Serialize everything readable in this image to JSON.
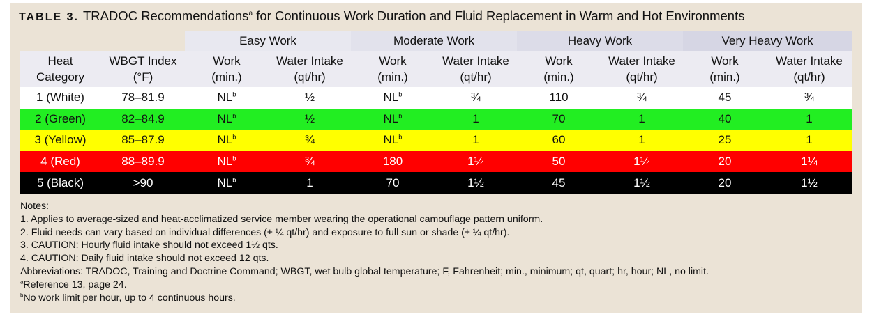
{
  "header": {
    "label": "TABLE 3.",
    "title": "TRADOC Recommendations",
    "title_sup": "a",
    "title_rest": " for Continuous Work Duration and Fluid Replacement in Warm and Hot Environments"
  },
  "table": {
    "groups": [
      "Easy Work",
      "Moderate Work",
      "Heavy Work",
      "Very Heavy Work"
    ],
    "columns": [
      [
        "Heat",
        "Category"
      ],
      [
        "WBGT Index",
        "(°F)"
      ],
      [
        "Work",
        "(min.)"
      ],
      [
        "Water Intake",
        "(qt/hr)"
      ],
      [
        "Work",
        "(min.)"
      ],
      [
        "Water Intake",
        "(qt/hr)"
      ],
      [
        "Work",
        "(min.)"
      ],
      [
        "Water Intake",
        "(qt/hr)"
      ],
      [
        "Work",
        "(min.)"
      ],
      [
        "Water Intake",
        "(qt/hr)"
      ]
    ],
    "rows": [
      [
        "1 (White)",
        "78–81.9",
        {
          "text": "NL",
          "sup": "b"
        },
        "½",
        {
          "text": "NL",
          "sup": "b"
        },
        "¾",
        "110",
        "¾",
        "45",
        "¾"
      ],
      [
        "2 (Green)",
        "82–84.9",
        {
          "text": "NL",
          "sup": "b"
        },
        "½",
        {
          "text": "NL",
          "sup": "b"
        },
        "1",
        "70",
        "1",
        "40",
        "1"
      ],
      [
        "3 (Yellow)",
        "85–87.9",
        {
          "text": "NL",
          "sup": "b"
        },
        "¾",
        {
          "text": "NL",
          "sup": "b"
        },
        "1",
        "60",
        "1",
        "25",
        "1"
      ],
      [
        "4 (Red)",
        "88–89.9",
        {
          "text": "NL",
          "sup": "b"
        },
        "¾",
        "180",
        "1¼",
        "50",
        "1¼",
        "20",
        "1¼"
      ],
      [
        "5 (Black)",
        ">90",
        {
          "text": "NL",
          "sup": "b"
        },
        "1",
        "70",
        "1½",
        "45",
        "1½",
        "20",
        "1½"
      ]
    ]
  },
  "notes": [
    {
      "text": "Notes:"
    },
    {
      "text": "1. Applies to average-sized and heat-acclimatized service member wearing the operational camouflage pattern uniform."
    },
    {
      "text": "2. Fluid needs can vary based on individual differences (± ¼ qt/hr) and exposure to full sun or shade (± ¼ qt/hr)."
    },
    {
      "text": "3. CAUTION: Hourly fluid intake should not exceed 1½ qts."
    },
    {
      "text": "4. CAUTION: Daily fluid intake should not exceed 12 qts."
    },
    {
      "text": "Abbreviations: TRADOC, Training and Doctrine Command; WBGT, wet bulb global temperature; F, Fahrenheit; min., minimum; qt, quart; hr, hour; NL, no limit."
    },
    {
      "sup": "a",
      "text": "Reference 13, page 24."
    },
    {
      "sup": "b",
      "text": "No work limit per hour, up to 4 continuous hours."
    }
  ]
}
